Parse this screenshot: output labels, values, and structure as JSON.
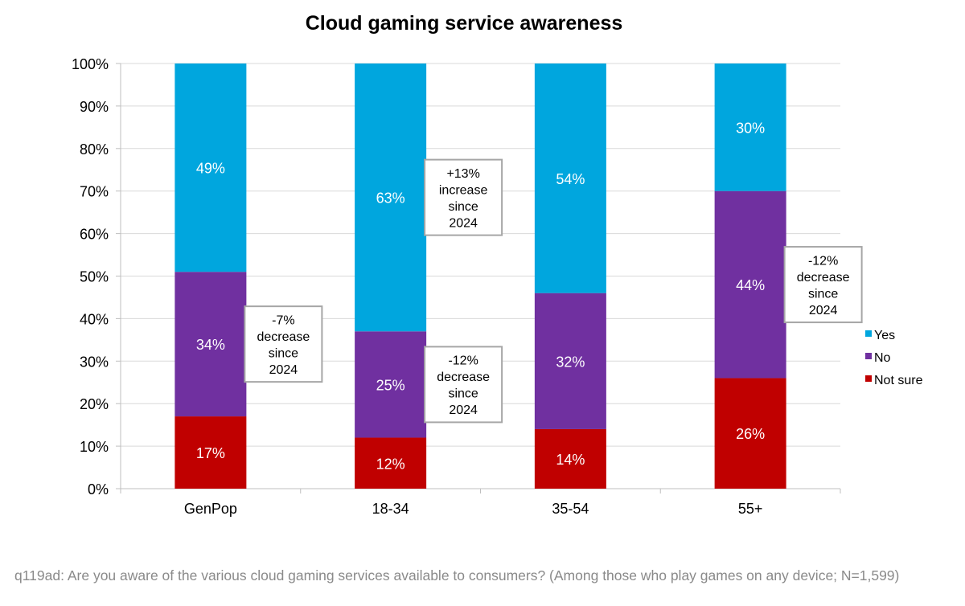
{
  "chart_data": {
    "type": "bar",
    "stacked": true,
    "title": "Cloud gaming service awareness",
    "xlabel": "",
    "ylabel": "",
    "ylim": [
      0,
      100
    ],
    "y_ticks": [
      0,
      10,
      20,
      30,
      40,
      50,
      60,
      70,
      80,
      90,
      100
    ],
    "y_tick_suffix": "%",
    "grid": true,
    "categories": [
      "GenPop",
      "18-34",
      "35-54",
      "55+"
    ],
    "series": [
      {
        "name": "Not sure",
        "color": "#c00000",
        "values": [
          17,
          12,
          14,
          26
        ],
        "labels": [
          "17%",
          "12%",
          "14%",
          "26%"
        ]
      },
      {
        "name": "No",
        "color": "#7030a0",
        "values": [
          34,
          25,
          32,
          44
        ],
        "labels": [
          "34%",
          "25%",
          "32%",
          "44%"
        ]
      },
      {
        "name": "Yes",
        "color": "#00a6de",
        "values": [
          49,
          63,
          54,
          30
        ],
        "labels": [
          "49%",
          "63%",
          "54%",
          "30%"
        ]
      }
    ],
    "legend": {
      "position": "right",
      "order": [
        "Yes",
        "No",
        "Not sure"
      ]
    },
    "annotations": [
      {
        "category": "GenPop",
        "series": "No",
        "lines": [
          "-7%",
          "decrease",
          "since",
          "2024"
        ]
      },
      {
        "category": "18-34",
        "series": "Yes",
        "lines": [
          "+13%",
          "increase",
          "since",
          "2024"
        ]
      },
      {
        "category": "18-34",
        "series": "No",
        "lines": [
          "-12%",
          "decrease",
          "since",
          "2024"
        ]
      },
      {
        "category": "55+",
        "series": "No",
        "lines": [
          "-12%",
          "decrease",
          "since",
          "2024"
        ]
      }
    ]
  },
  "footnote": "q119ad: Are you aware of the various cloud gaming services available to consumers? (Among those who play games on any device; N=1,599)"
}
